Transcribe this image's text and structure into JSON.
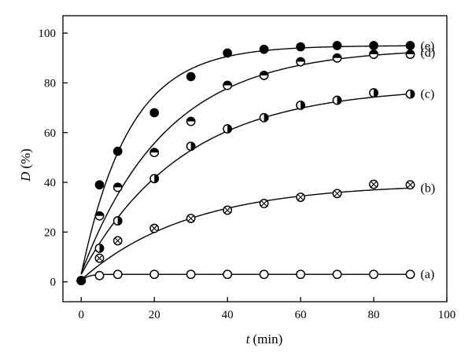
{
  "chart_data": {
    "type": "scatter",
    "xlabel_symbol": "t",
    "xlabel_unit": "(min)",
    "ylabel_symbol": "D",
    "ylabel_unit": "(%)",
    "xlim": [
      -5,
      100
    ],
    "ylim": [
      -8,
      107
    ],
    "xticks": [
      0,
      20,
      40,
      60,
      80,
      100
    ],
    "yticks": [
      0,
      20,
      40,
      60,
      80,
      100
    ],
    "grid": false,
    "series": [
      {
        "name": "(a)",
        "marker": "open-circle",
        "points": [
          [
            0,
            0.5
          ],
          [
            5,
            2.5
          ],
          [
            10,
            3
          ],
          [
            20,
            3
          ],
          [
            30,
            3
          ],
          [
            40,
            3
          ],
          [
            50,
            3
          ],
          [
            60,
            3
          ],
          [
            70,
            3
          ],
          [
            80,
            3
          ],
          [
            90,
            3
          ]
        ],
        "fit": {
          "a0": 0.3,
          "amax": 3.0,
          "k": 0.6
        }
      },
      {
        "name": "(b)",
        "marker": "crossed-circle",
        "points": [
          [
            0,
            0.5
          ],
          [
            5,
            9.5
          ],
          [
            10,
            16.5
          ],
          [
            20,
            21.5
          ],
          [
            30,
            25.5
          ],
          [
            40,
            28.8
          ],
          [
            50,
            31.5
          ],
          [
            60,
            34
          ],
          [
            70,
            35.5
          ],
          [
            80,
            39.2
          ],
          [
            90,
            39
          ]
        ],
        "fit": {
          "a0": 0.8,
          "amax": 39.5,
          "k": 0.034
        }
      },
      {
        "name": "(c)",
        "marker": "right-half-filled-circle",
        "points": [
          [
            0,
            0.5
          ],
          [
            5,
            13.5
          ],
          [
            10,
            24.5
          ],
          [
            20,
            41.5
          ],
          [
            30,
            54.5
          ],
          [
            40,
            61.5
          ],
          [
            50,
            66
          ],
          [
            60,
            71
          ],
          [
            70,
            73
          ],
          [
            80,
            76
          ],
          [
            90,
            75.5
          ]
        ],
        "fit": {
          "a0": 3.0,
          "amax": 78.5,
          "k": 0.036
        }
      },
      {
        "name": "(d)",
        "marker": "top-half-filled-circle",
        "points": [
          [
            0,
            0.5
          ],
          [
            5,
            26.5
          ],
          [
            10,
            38
          ],
          [
            20,
            52
          ],
          [
            30,
            64.5
          ],
          [
            40,
            79
          ],
          [
            50,
            83
          ],
          [
            60,
            88.5
          ],
          [
            70,
            90
          ],
          [
            80,
            91.5
          ],
          [
            90,
            91.5
          ]
        ],
        "fit": {
          "a0": 3.5,
          "amax": 94.0,
          "k": 0.043
        }
      },
      {
        "name": "(e)",
        "marker": "filled-circle",
        "points": [
          [
            0,
            0.5
          ],
          [
            5,
            39
          ],
          [
            10,
            52.5
          ],
          [
            20,
            68
          ],
          [
            30,
            82.5
          ],
          [
            40,
            92
          ],
          [
            50,
            93.5
          ],
          [
            60,
            94.5
          ],
          [
            70,
            95
          ],
          [
            80,
            95
          ],
          [
            90,
            95
          ]
        ],
        "fit": {
          "a0": 3.0,
          "amax": 95.0,
          "k": 0.076
        }
      }
    ]
  }
}
